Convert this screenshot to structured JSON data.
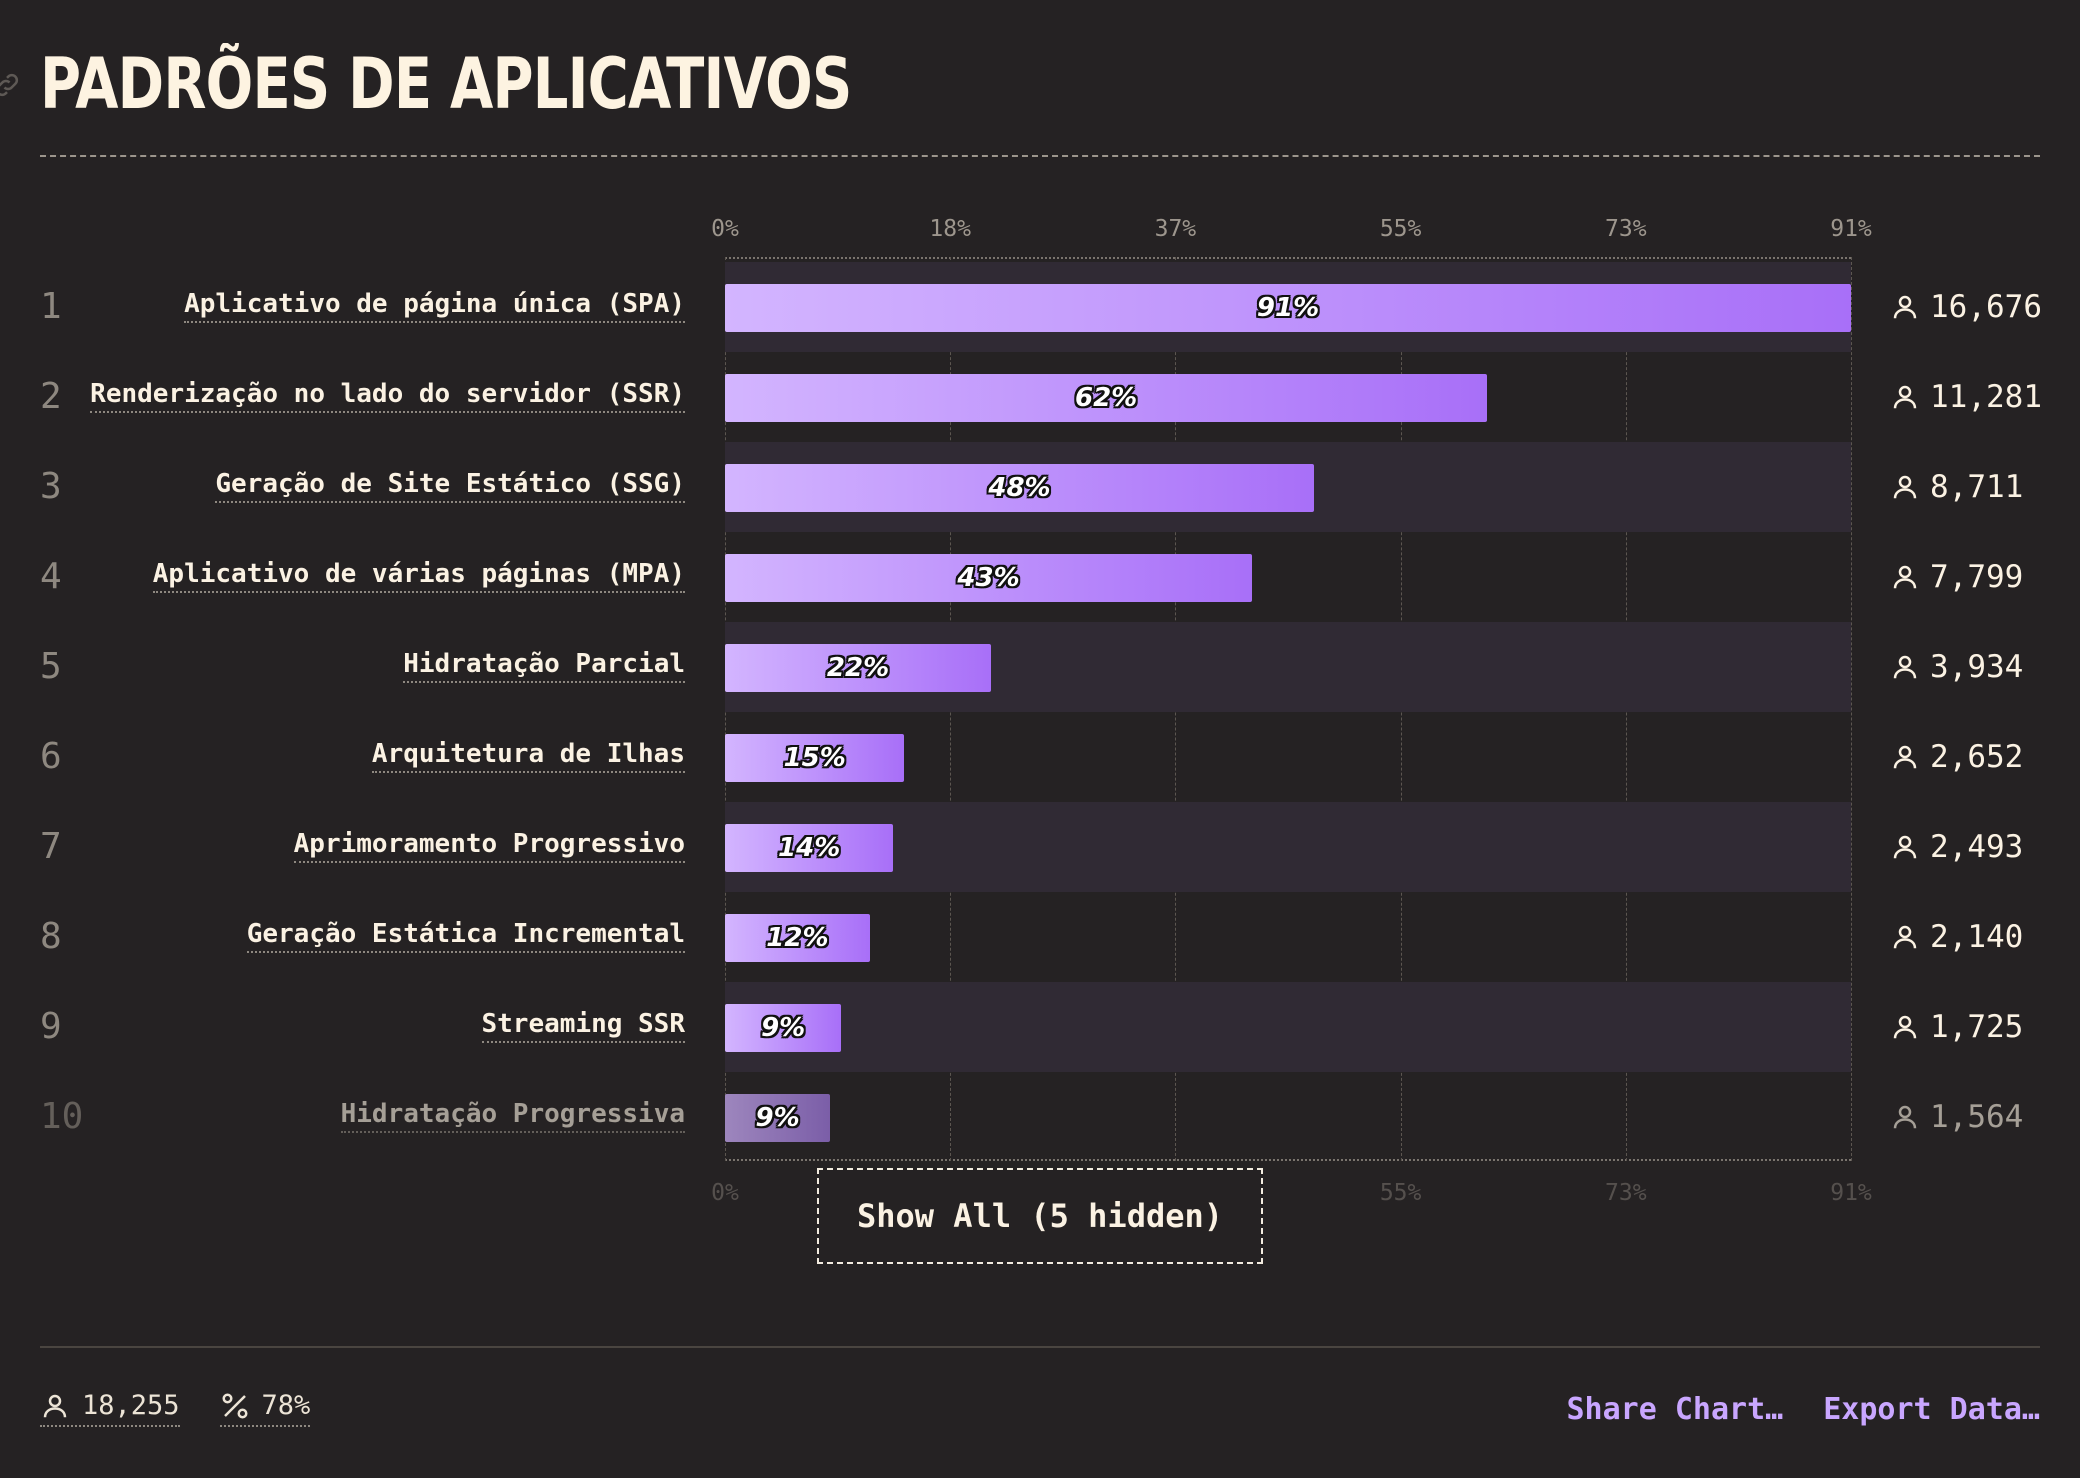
{
  "header": {
    "title": "PADRÕES DE APLICATIVOS"
  },
  "chart_data": {
    "type": "bar",
    "orientation": "horizontal",
    "title": "PADRÕES DE APLICATIVOS",
    "xlim": [
      0,
      91
    ],
    "ticks": [
      "0%",
      "18%",
      "37%",
      "55%",
      "73%",
      "91%"
    ],
    "tick_values": [
      0,
      18.2,
      36.4,
      54.6,
      72.8,
      91
    ],
    "grid": true,
    "categories": [
      "Aplicativo de página única (SPA)",
      "Renderização no lado do servidor (SSR)",
      "Geração de Site Estático (SSG)",
      "Aplicativo de várias páginas (MPA)",
      "Hidratação Parcial",
      "Arquitetura de Ilhas",
      "Aprimoramento Progressivo",
      "Geração Estática Incremental",
      "Streaming SSR",
      "Hidratação Progressiva"
    ],
    "values": [
      91,
      62,
      48,
      43,
      22,
      15,
      14,
      12,
      9,
      9
    ],
    "value_labels": [
      "91%",
      "62%",
      "48%",
      "43%",
      "22%",
      "15%",
      "14%",
      "12%",
      "9%",
      "9%"
    ],
    "bar_values": [
      91,
      61.6,
      47.6,
      42.6,
      21.5,
      14.5,
      13.6,
      11.7,
      9.4,
      8.5
    ],
    "counts": [
      "16,676",
      "11,281",
      "8,711",
      "7,799",
      "3,934",
      "2,652",
      "2,493",
      "2,140",
      "1,725",
      "1,564"
    ],
    "ranks": [
      "1",
      "2",
      "3",
      "4",
      "5",
      "6",
      "7",
      "8",
      "9",
      "10"
    ]
  },
  "show_all_label": "Show All (5 hidden)",
  "footer": {
    "respondents": "18,255",
    "percent": "78%",
    "share_label": "Share Chart…",
    "export_label": "Export Data…"
  },
  "colors": {
    "bar_start": "#d3b5ff",
    "bar_end": "#a86ff8",
    "accent": "#c9a6ff",
    "background": "#252223"
  }
}
